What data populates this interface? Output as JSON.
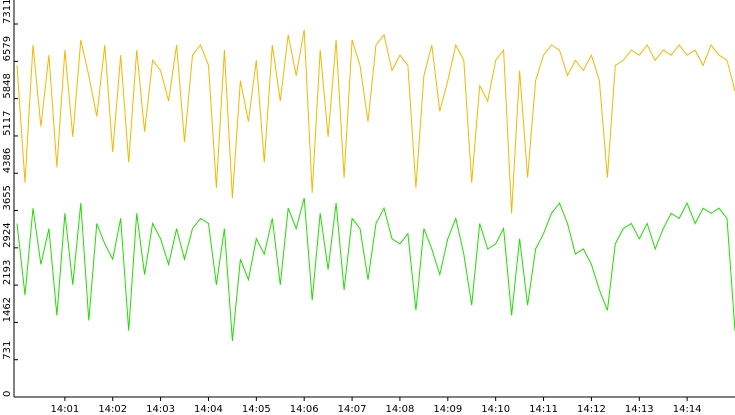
{
  "chart_data": {
    "type": "line",
    "categories": [
      null,
      null,
      null,
      null,
      null,
      null,
      "14:01",
      null,
      null,
      null,
      null,
      null,
      "14:02",
      null,
      null,
      null,
      null,
      null,
      "14:03",
      null,
      null,
      null,
      null,
      null,
      "14:04",
      null,
      null,
      null,
      null,
      null,
      "14:05",
      null,
      null,
      null,
      null,
      null,
      "14:06",
      null,
      null,
      null,
      null,
      null,
      "14:07",
      null,
      null,
      null,
      null,
      null,
      "14:08",
      null,
      null,
      null,
      null,
      null,
      "14:09",
      null,
      null,
      null,
      null,
      null,
      "14:10",
      null,
      null,
      null,
      null,
      null,
      "14:11",
      null,
      null,
      null,
      null,
      null,
      "14:12",
      null,
      null,
      null,
      null,
      null,
      "14:13",
      null,
      null,
      null,
      null,
      null,
      "14:14",
      null,
      null,
      null,
      null,
      null,
      null
    ],
    "series": [
      {
        "color": "#f5b800",
        "values": [
          6500,
          4200,
          6900,
          5300,
          6700,
          4500,
          6800,
          5100,
          7000,
          6300,
          5500,
          6900,
          4800,
          6700,
          4600,
          6800,
          5200,
          6600,
          6400,
          5800,
          6900,
          5000,
          6700,
          6900,
          6500,
          4100,
          6800,
          3900,
          6200,
          5400,
          6600,
          4600,
          6900,
          5800,
          7100,
          6300,
          7200,
          4000,
          6800,
          5100,
          7000,
          4300,
          7000,
          6500,
          5400,
          6900,
          7100,
          6400,
          6700,
          6500,
          4100,
          6300,
          6900,
          5600,
          6200,
          6900,
          6600,
          4200,
          6100,
          5800,
          6600,
          6800,
          3600,
          6400,
          4300,
          6200,
          6700,
          6900,
          6800,
          6300,
          6600,
          6400,
          6700,
          6200,
          4300,
          6500,
          6600,
          6800,
          6700,
          6900,
          6600,
          6800,
          6700,
          6900,
          6700,
          6800,
          6500,
          6900,
          6700,
          6600,
          6000
        ]
      },
      {
        "color": "#22dd00",
        "values": [
          3400,
          2000,
          3700,
          2600,
          3300,
          1600,
          3600,
          2200,
          3800,
          1500,
          3400,
          3000,
          2700,
          3500,
          1300,
          3600,
          2400,
          3400,
          3100,
          2600,
          3300,
          2700,
          3300,
          3500,
          3400,
          2200,
          3300,
          1100,
          2700,
          2300,
          3100,
          2800,
          3500,
          2200,
          3700,
          3300,
          3900,
          1900,
          3600,
          2500,
          3800,
          2100,
          3500,
          3300,
          2300,
          3400,
          3700,
          3100,
          3000,
          3200,
          1700,
          3300,
          2900,
          2400,
          3100,
          3500,
          2800,
          1800,
          3400,
          2900,
          3000,
          3300,
          1600,
          3100,
          1800,
          2900,
          3200,
          3600,
          3800,
          3400,
          2800,
          2900,
          2600,
          2100,
          1700,
          3000,
          3300,
          3400,
          3100,
          3400,
          2900,
          3300,
          3600,
          3500,
          3800,
          3400,
          3700,
          3600,
          3700,
          3500,
          1300
        ]
      }
    ],
    "ylim": [
      0,
      7311
    ],
    "yticks": [
      0,
      731,
      1462,
      2193,
      2924,
      3655,
      4386,
      5117,
      5848,
      6579,
      7311
    ]
  }
}
